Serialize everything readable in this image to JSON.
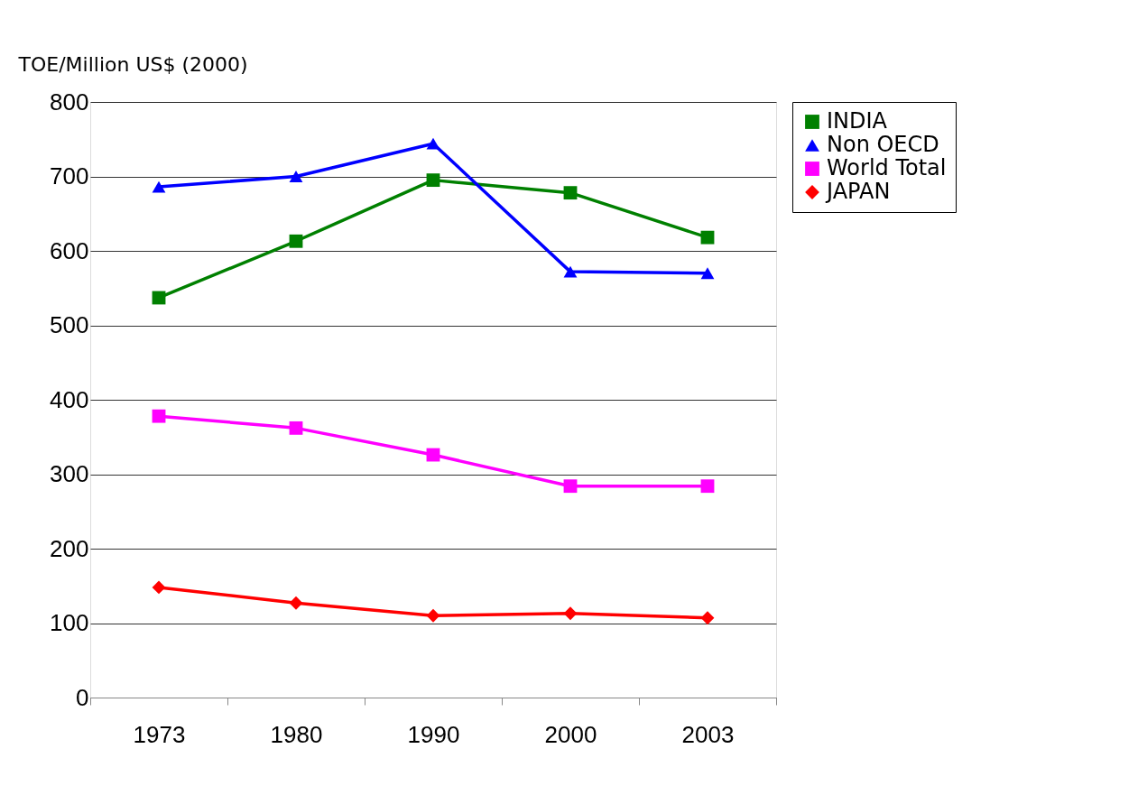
{
  "chart_data": {
    "type": "line",
    "ylabel": "TOE/Million US$ (2000)",
    "categories": [
      "1973",
      "1980",
      "1990",
      "2000",
      "2003"
    ],
    "series": [
      {
        "name": "INDIA",
        "color": "#008000",
        "marker": "square",
        "values": [
          537,
          613,
          695,
          678,
          618
        ]
      },
      {
        "name": "Non OECD",
        "color": "#0000ff",
        "marker": "triangle",
        "values": [
          686,
          700,
          744,
          572,
          570
        ]
      },
      {
        "name": "World Total",
        "color": "#ff00ff",
        "marker": "square",
        "values": [
          378,
          362,
          326,
          284,
          284
        ]
      },
      {
        "name": "JAPAN",
        "color": "#ff0000",
        "marker": "diamond",
        "values": [
          148,
          127,
          110,
          113,
          107
        ]
      }
    ],
    "ylim": [
      0,
      800
    ],
    "yticks": [
      0,
      100,
      200,
      300,
      400,
      500,
      600,
      700,
      800
    ],
    "grid": "y",
    "legend": "right",
    "line_style": "solid"
  }
}
